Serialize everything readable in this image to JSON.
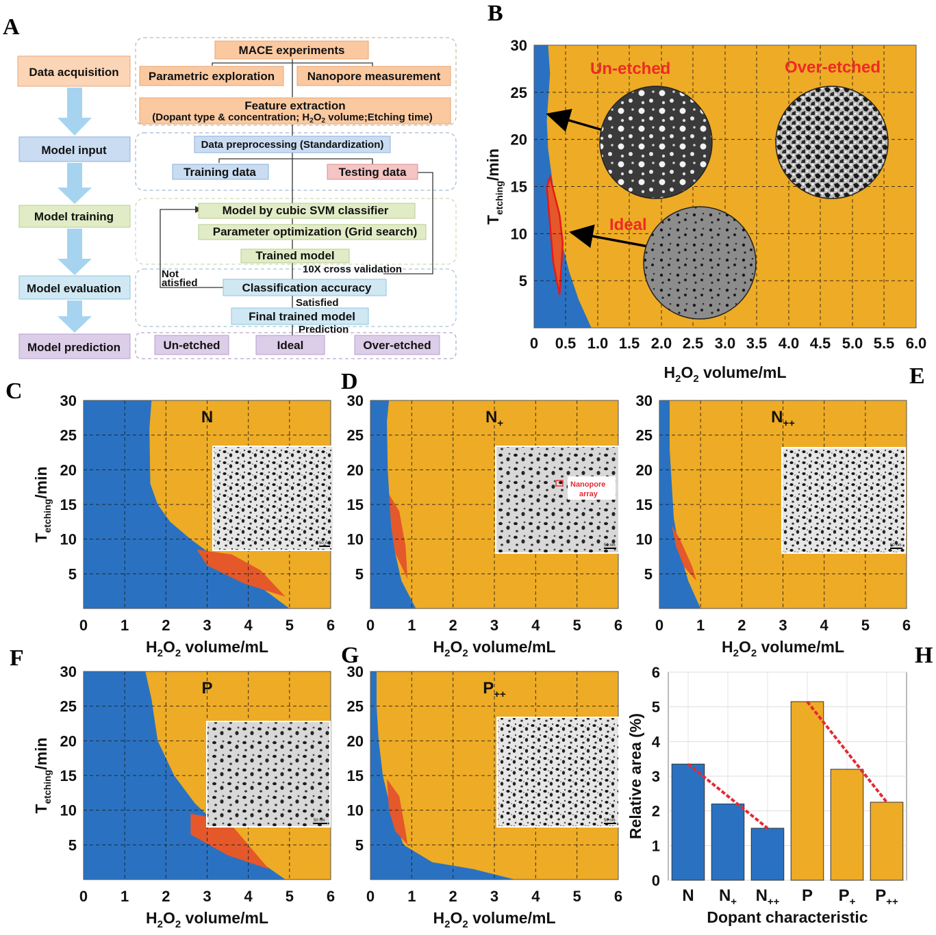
{
  "colors": {
    "unetched": "#2a72c1",
    "overetched": "#eeab25",
    "ideal": "#e4582a",
    "trend": "#e32a32"
  },
  "panel_labels": [
    "A",
    "B",
    "C",
    "D",
    "E",
    "F",
    "G",
    "H"
  ],
  "flowchart": {
    "stages": [
      "Data acquisition",
      "Model input",
      "Model training",
      "Model evaluation",
      "Model prediction"
    ],
    "mace": "MACE experiments",
    "parametric": "Parametric exploration",
    "nanopore_measure": "Nanopore measurement",
    "feature_title": "Feature extraction",
    "feature_detail": [
      "(Dopant type & concentration; H",
      "2",
      "O",
      "2",
      " volume;Etching time)"
    ],
    "preprocessing": "Data preprocessing (Standardization)",
    "training_data": "Training data",
    "testing_data": "Testing data",
    "svm": "Model by cubic SVM classifier",
    "grid": "Parameter optimization (Grid search)",
    "trained": "Trained model",
    "cross_val": "10X cross validation",
    "not_sat_1": "Not",
    "not_sat_2": "atisfied",
    "accuracy": "Classification accuracy",
    "satisfied": "Satisfied",
    "final": "Final trained model",
    "prediction": "Prediction",
    "outcomes": [
      "Un-etched",
      "Ideal",
      "Over-etched"
    ]
  },
  "panel_b": {
    "unetched_label": "Un-etched",
    "overetched_label": "Over-etched",
    "ideal_label": "Ideal"
  },
  "axis_text": {
    "x_main": "H",
    "x_sub": "2",
    "x_tail": "O",
    "x_sub2": "2",
    "x_rest": " volume/mL",
    "y_main": "T",
    "y_sub": "etching",
    "y_rest": "/min"
  },
  "insets": {
    "scale": "50 nm",
    "nanopore_1": "Nanopore",
    "nanopore_2": "array"
  },
  "chart_data": [
    {
      "panel": "B",
      "type": "area",
      "title": "",
      "xlabel": "H2O2 volume/mL",
      "ylabel": "Tetching/min",
      "x_ticks": [
        "0",
        "0.5",
        "1.0",
        "1.5",
        "2.0",
        "2.5",
        "3.0",
        "3.5",
        "4.0",
        "4.5",
        "5.0",
        "5.5",
        "6.0"
      ],
      "y_ticks": [
        "5",
        "10",
        "15",
        "20",
        "25",
        "30"
      ],
      "xlim": [
        0,
        6
      ],
      "ylim": [
        0,
        30
      ],
      "classes": [
        "Un-etched",
        "Ideal",
        "Over-etched"
      ],
      "unetched_boundary": [
        [
          0.22,
          30
        ],
        [
          0.25,
          27
        ],
        [
          0.2,
          22
        ],
        [
          0.22,
          19
        ],
        [
          0.3,
          15
        ],
        [
          0.4,
          10
        ],
        [
          0.55,
          6
        ],
        [
          0.7,
          3
        ],
        [
          0.9,
          0
        ]
      ],
      "ideal_region": [
        [
          0.2,
          15
        ],
        [
          0.25,
          16
        ],
        [
          0.4,
          12
        ],
        [
          0.45,
          9
        ],
        [
          0.4,
          3.5
        ],
        [
          0.3,
          7
        ]
      ]
    },
    {
      "panel": "C",
      "type": "area",
      "title": "N",
      "xlabel": "H2O2 volume/mL",
      "ylabel": "Tetching/min",
      "x_ticks": [
        "0",
        "1",
        "2",
        "3",
        "4",
        "5",
        "6"
      ],
      "y_ticks": [
        "5",
        "10",
        "15",
        "20",
        "25",
        "30"
      ],
      "xlim": [
        0,
        6
      ],
      "ylim": [
        0,
        30
      ],
      "unetched_boundary": [
        [
          1.65,
          30
        ],
        [
          1.6,
          26
        ],
        [
          1.62,
          18
        ],
        [
          1.8,
          15
        ],
        [
          2.1,
          12.5
        ],
        [
          2.6,
          10
        ],
        [
          3.4,
          6.5
        ],
        [
          4.2,
          3.5
        ],
        [
          5.0,
          0
        ]
      ],
      "ideal_region": [
        [
          2.75,
          8.5
        ],
        [
          3.6,
          7.8
        ],
        [
          4.3,
          5.5
        ],
        [
          4.9,
          1.7
        ],
        [
          3.9,
          3.6
        ],
        [
          3.0,
          6.2
        ]
      ]
    },
    {
      "panel": "D",
      "type": "area",
      "title": "N+",
      "xlabel": "H2O2 volume/mL",
      "ylabel": "Tetching/min",
      "x_ticks": [
        "0",
        "1",
        "2",
        "3",
        "4",
        "5",
        "6"
      ],
      "y_ticks": [
        "5",
        "10",
        "15",
        "20",
        "25",
        "30"
      ],
      "xlim": [
        0,
        6
      ],
      "ylim": [
        0,
        30
      ],
      "unetched_boundary": [
        [
          0.45,
          30
        ],
        [
          0.4,
          27
        ],
        [
          0.42,
          20
        ],
        [
          0.45,
          17
        ],
        [
          0.5,
          12
        ],
        [
          0.6,
          8
        ],
        [
          0.75,
          4
        ],
        [
          1.1,
          0
        ]
      ],
      "ideal_region": [
        [
          0.45,
          16.5
        ],
        [
          0.7,
          14
        ],
        [
          0.85,
          9
        ],
        [
          0.9,
          4.2
        ],
        [
          0.6,
          8
        ],
        [
          0.5,
          12
        ]
      ]
    },
    {
      "panel": "E",
      "type": "area",
      "title": "N++",
      "xlabel": "H2O2 volume/mL",
      "ylabel": "Tetching/min",
      "x_ticks": [
        "0",
        "1",
        "2",
        "3",
        "4",
        "5",
        "6"
      ],
      "y_ticks": [
        "5",
        "10",
        "15",
        "20",
        "25",
        "30"
      ],
      "xlim": [
        0,
        6
      ],
      "ylim": [
        0,
        30
      ],
      "unetched_boundary": [
        [
          0.25,
          30
        ],
        [
          0.25,
          23
        ],
        [
          0.3,
          18
        ],
        [
          0.35,
          13
        ],
        [
          0.5,
          8
        ],
        [
          0.7,
          4
        ],
        [
          1.0,
          0
        ]
      ],
      "ideal_region": [
        [
          0.3,
          12
        ],
        [
          0.5,
          10
        ],
        [
          0.8,
          6
        ],
        [
          0.9,
          4
        ],
        [
          0.6,
          6
        ],
        [
          0.4,
          9
        ]
      ]
    },
    {
      "panel": "F",
      "type": "area",
      "title": "P",
      "xlabel": "H2O2 volume/mL",
      "ylabel": "Tetching/min",
      "x_ticks": [
        "0",
        "1",
        "2",
        "3",
        "4",
        "5",
        "6"
      ],
      "y_ticks": [
        "5",
        "10",
        "15",
        "20",
        "25",
        "30"
      ],
      "xlim": [
        0,
        6
      ],
      "ylim": [
        0,
        30
      ],
      "unetched_boundary": [
        [
          1.5,
          30
        ],
        [
          1.65,
          26
        ],
        [
          1.8,
          20
        ],
        [
          2.2,
          15
        ],
        [
          2.7,
          11
        ],
        [
          3.5,
          6.5
        ],
        [
          4.3,
          2.5
        ],
        [
          4.9,
          0
        ]
      ],
      "ideal_region": [
        [
          2.6,
          9.5
        ],
        [
          3.5,
          8.5
        ],
        [
          4.0,
          5
        ],
        [
          4.5,
          1.5
        ],
        [
          3.5,
          3.5
        ],
        [
          2.6,
          6.5
        ]
      ]
    },
    {
      "panel": "G",
      "type": "area",
      "title": "P++",
      "xlabel": "H2O2 volume/mL",
      "ylabel": "Tetching/min",
      "x_ticks": [
        "0",
        "1",
        "2",
        "3",
        "4",
        "5",
        "6"
      ],
      "y_ticks": [
        "5",
        "10",
        "15",
        "20",
        "25",
        "30"
      ],
      "xlim": [
        0,
        6
      ],
      "ylim": [
        0,
        30
      ],
      "unetched_boundary": [
        [
          0.15,
          30
        ],
        [
          0.15,
          25
        ],
        [
          0.2,
          20
        ],
        [
          0.3,
          15
        ],
        [
          0.5,
          10
        ],
        [
          0.8,
          5
        ],
        [
          1.5,
          2.5
        ],
        [
          2.5,
          1.5
        ],
        [
          3.5,
          0
        ]
      ],
      "ideal_region": [
        [
          0.4,
          14.5
        ],
        [
          0.7,
          12
        ],
        [
          0.85,
          7
        ],
        [
          0.9,
          5
        ],
        [
          0.6,
          7
        ],
        [
          0.45,
          10
        ]
      ]
    },
    {
      "panel": "H",
      "type": "bar",
      "title": "",
      "xlabel": "Dopant characteristic",
      "ylabel": "Relative area (%)",
      "categories": [
        "N",
        "N+",
        "N++",
        "P",
        "P+",
        "P++"
      ],
      "values": [
        3.35,
        2.2,
        1.5,
        5.15,
        3.2,
        2.25
      ],
      "ylim": [
        0,
        6
      ],
      "y_ticks": [
        "0",
        "1",
        "2",
        "3",
        "4",
        "5",
        "6"
      ]
    }
  ]
}
